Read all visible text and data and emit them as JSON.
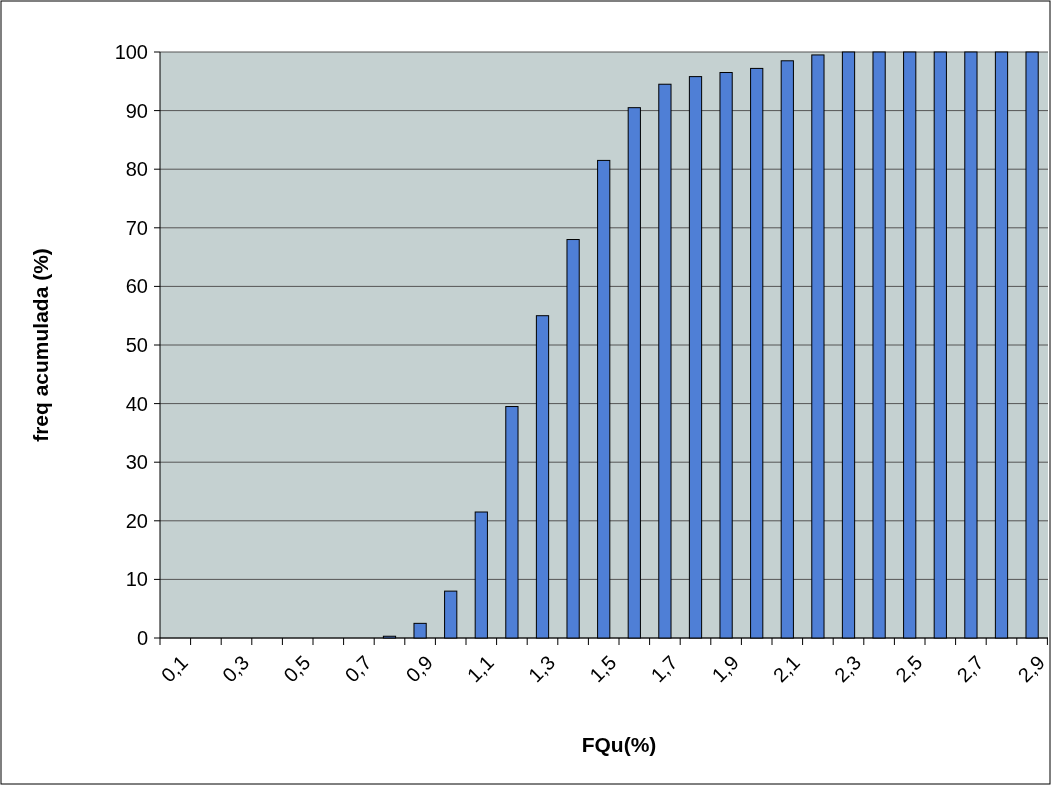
{
  "chart_data": {
    "type": "bar",
    "xlabel": "FQu(%)",
    "ylabel": "freq acumulada (%)",
    "categories": [
      "0,1",
      null,
      "0,3",
      null,
      "0,5",
      null,
      "0,7",
      null,
      "0,9",
      null,
      "1,1",
      null,
      "1,3",
      null,
      "1,5",
      null,
      "1,7",
      null,
      "1,9",
      null,
      "2,1",
      null,
      "2,3",
      null,
      "2,5",
      null,
      "2,7",
      null,
      "2,9"
    ],
    "values": [
      0,
      0,
      0,
      0,
      0,
      0,
      0,
      0.3,
      2.5,
      8,
      21.5,
      39.5,
      55,
      68,
      81.5,
      90.5,
      94.5,
      95.8,
      96.5,
      97.2,
      98.5,
      99.5,
      100,
      100,
      100,
      100,
      100,
      100,
      100
    ],
    "color": "#4f7fd6",
    "ylim": [
      0,
      100
    ],
    "yticks": [
      0,
      10,
      20,
      30,
      40,
      50,
      60,
      70,
      80,
      90,
      100
    ],
    "grid": "y"
  }
}
